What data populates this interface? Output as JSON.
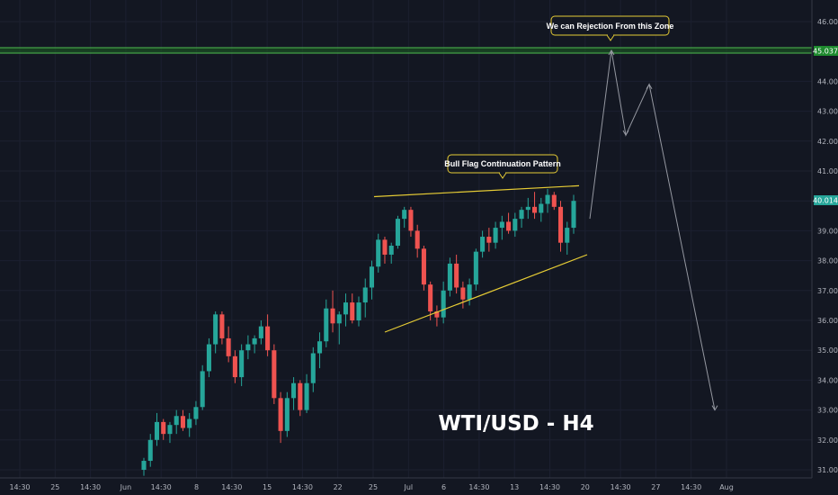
{
  "chart_data": {
    "type": "candlestick",
    "symbol_label": "WTI/USD - H4",
    "y_axis": {
      "range": [
        30.5,
        46.5
      ],
      "ticks": [
        "46.000",
        "45.000",
        "44.000",
        "43.000",
        "42.000",
        "41.000",
        "40.000",
        "39.000",
        "38.000",
        "37.000",
        "36.000",
        "35.000",
        "34.000",
        "33.000",
        "32.000",
        "31.000"
      ]
    },
    "x_axis": {
      "ticks": [
        "14:30",
        "25",
        "14:30",
        "Jun",
        "14:30",
        "8",
        "14:30",
        "15",
        "14:30",
        "22",
        "25",
        "Jul",
        "6",
        "14:30",
        "13",
        "14:30",
        "20",
        "14:30",
        "27",
        "14:30",
        "Aug"
      ]
    },
    "price_tags": {
      "resistance": "45.037",
      "current": "40.014"
    },
    "resistance_level": 45.037,
    "annotations": {
      "resistance_note": "We can Rejection From this Zone",
      "pattern_note": "Bull Flag Continuation Pattern"
    },
    "candles": [
      [
        31.0,
        31.4,
        30.8,
        31.3
      ],
      [
        31.3,
        32.2,
        31.1,
        32.0
      ],
      [
        32.0,
        32.9,
        31.8,
        32.6
      ],
      [
        32.6,
        32.7,
        32.0,
        32.2
      ],
      [
        32.2,
        32.6,
        31.9,
        32.5
      ],
      [
        32.5,
        33.0,
        32.2,
        32.8
      ],
      [
        32.8,
        33.0,
        32.3,
        32.4
      ],
      [
        32.4,
        32.9,
        32.1,
        32.7
      ],
      [
        32.7,
        33.3,
        32.5,
        33.1
      ],
      [
        33.1,
        34.5,
        33.0,
        34.3
      ],
      [
        34.3,
        35.4,
        34.1,
        35.2
      ],
      [
        35.2,
        36.3,
        34.9,
        36.2
      ],
      [
        36.2,
        36.3,
        35.2,
        35.4
      ],
      [
        35.4,
        35.8,
        34.6,
        34.8
      ],
      [
        34.8,
        35.0,
        33.9,
        34.1
      ],
      [
        34.1,
        35.2,
        33.8,
        35.0
      ],
      [
        35.0,
        35.5,
        34.7,
        35.2
      ],
      [
        35.2,
        35.5,
        34.9,
        35.4
      ],
      [
        35.4,
        36.0,
        35.2,
        35.8
      ],
      [
        35.8,
        36.2,
        34.8,
        35.0
      ],
      [
        35.0,
        35.2,
        33.2,
        33.4
      ],
      [
        33.4,
        33.6,
        31.9,
        32.3
      ],
      [
        32.3,
        33.6,
        32.1,
        33.4
      ],
      [
        33.4,
        34.1,
        33.0,
        33.9
      ],
      [
        33.9,
        34.0,
        32.8,
        33.0
      ],
      [
        33.0,
        34.2,
        32.9,
        33.9
      ],
      [
        33.9,
        35.1,
        33.6,
        34.9
      ],
      [
        34.9,
        35.6,
        34.4,
        35.3
      ],
      [
        35.3,
        36.7,
        35.1,
        36.4
      ],
      [
        36.4,
        37.0,
        35.6,
        35.9
      ],
      [
        35.9,
        36.3,
        35.2,
        36.2
      ],
      [
        36.2,
        36.9,
        35.8,
        36.6
      ],
      [
        36.6,
        36.9,
        35.9,
        36.0
      ],
      [
        36.0,
        36.8,
        35.8,
        36.6
      ],
      [
        36.6,
        37.4,
        36.1,
        37.1
      ],
      [
        37.1,
        38.0,
        36.7,
        37.8
      ],
      [
        37.8,
        38.9,
        37.6,
        38.7
      ],
      [
        38.7,
        38.8,
        37.9,
        38.2
      ],
      [
        38.2,
        38.6,
        37.9,
        38.5
      ],
      [
        38.5,
        39.5,
        38.4,
        39.4
      ],
      [
        39.4,
        39.8,
        39.1,
        39.7
      ],
      [
        39.7,
        39.8,
        38.8,
        39.0
      ],
      [
        39.0,
        39.2,
        38.1,
        38.4
      ],
      [
        38.4,
        38.5,
        37.0,
        37.2
      ],
      [
        37.2,
        37.3,
        36.0,
        36.3
      ],
      [
        36.3,
        36.5,
        35.8,
        36.1
      ],
      [
        36.1,
        37.3,
        35.9,
        37.0
      ],
      [
        37.0,
        38.1,
        36.8,
        37.9
      ],
      [
        37.9,
        38.2,
        36.9,
        37.1
      ],
      [
        37.1,
        37.3,
        36.4,
        36.7
      ],
      [
        36.7,
        37.4,
        36.5,
        37.2
      ],
      [
        37.2,
        38.4,
        37.0,
        38.3
      ],
      [
        38.3,
        39.0,
        38.1,
        38.8
      ],
      [
        38.8,
        39.1,
        38.3,
        38.6
      ],
      [
        38.6,
        39.3,
        38.4,
        39.1
      ],
      [
        39.1,
        39.5,
        38.7,
        39.3
      ],
      [
        39.3,
        39.6,
        38.9,
        39.0
      ],
      [
        39.0,
        39.6,
        38.8,
        39.4
      ],
      [
        39.4,
        39.8,
        39.1,
        39.7
      ],
      [
        39.7,
        40.1,
        39.4,
        39.8
      ],
      [
        39.8,
        40.3,
        39.4,
        39.6
      ],
      [
        39.6,
        40.1,
        39.3,
        39.9
      ],
      [
        39.9,
        40.4,
        39.6,
        40.2
      ],
      [
        40.2,
        40.3,
        39.7,
        39.8
      ],
      [
        39.8,
        40.0,
        38.3,
        38.6
      ],
      [
        38.6,
        39.3,
        38.2,
        39.1
      ],
      [
        39.1,
        40.2,
        38.9,
        40.0
      ]
    ],
    "projection_path": [
      [
        39.4
      ],
      [
        45.037
      ],
      [
        42.2
      ],
      [
        43.9
      ],
      [
        33.0
      ]
    ]
  }
}
